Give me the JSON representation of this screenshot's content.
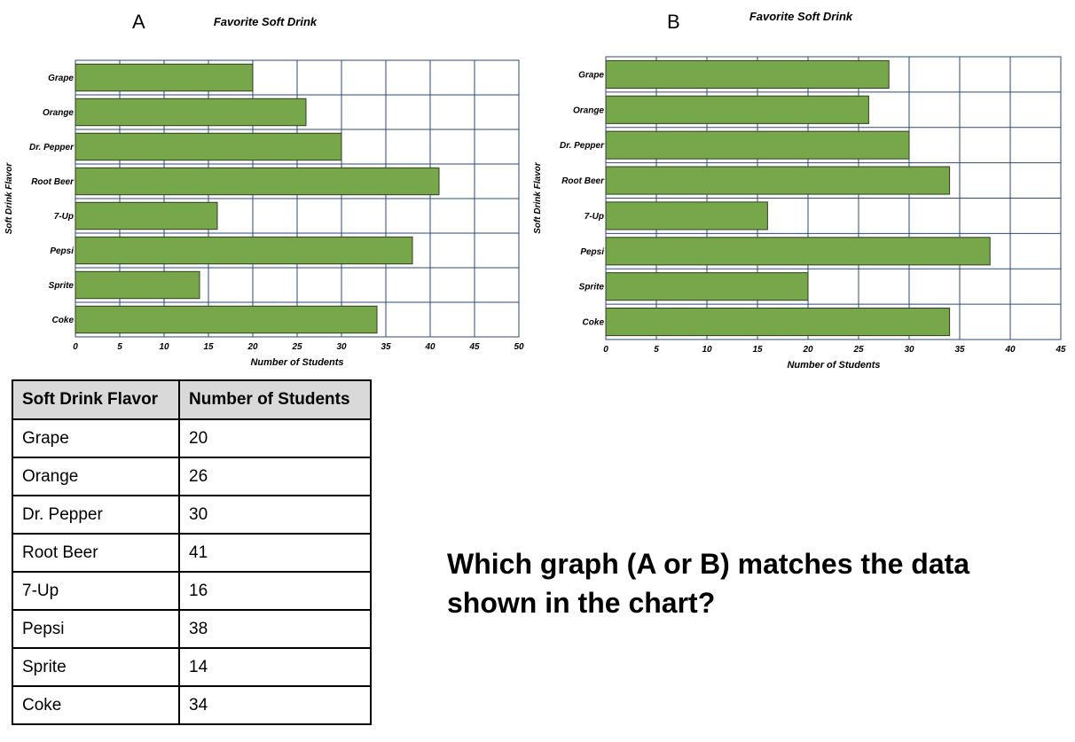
{
  "panels": {
    "a_label": "A",
    "b_label": "B"
  },
  "chart_data": [
    {
      "type": "bar",
      "orientation": "horizontal",
      "title": "Favorite Soft Drink",
      "xlabel": "Number of Students",
      "ylabel": "Soft Drink Flavor",
      "categories": [
        "Grape",
        "Orange",
        "Dr. Pepper",
        "Root Beer",
        "7-Up",
        "Pepsi",
        "Sprite",
        "Coke"
      ],
      "values": [
        20,
        26,
        30,
        41,
        16,
        38,
        14,
        34
      ],
      "xlim": [
        0,
        50
      ],
      "xticks": [
        "0",
        "5",
        "10",
        "15",
        "20",
        "25",
        "30",
        "35",
        "40",
        "45",
        "50"
      ],
      "grid": true,
      "bar_color": "#77a64b",
      "grid_color": "#2c4a74"
    },
    {
      "type": "bar",
      "orientation": "horizontal",
      "title": "Favorite Soft Drink",
      "xlabel": "Number of Students",
      "ylabel": "Soft Drink Flavor",
      "categories": [
        "Grape",
        "Orange",
        "Dr. Pepper",
        "Root Beer",
        "7-Up",
        "Pepsi",
        "Sprite",
        "Coke"
      ],
      "values": [
        28,
        26,
        30,
        34,
        16,
        38,
        20,
        34
      ],
      "xlim": [
        0,
        45
      ],
      "xticks": [
        "0",
        "5",
        "10",
        "15",
        "20",
        "25",
        "30",
        "35",
        "40",
        "45"
      ],
      "grid": true,
      "bar_color": "#77a64b",
      "grid_color": "#2c4a74"
    }
  ],
  "table": {
    "headers": [
      "Soft Drink Flavor",
      "Number of Students"
    ],
    "rows": [
      [
        "Grape",
        "20"
      ],
      [
        "Orange",
        "26"
      ],
      [
        "Dr. Pepper",
        "30"
      ],
      [
        "Root Beer",
        "41"
      ],
      [
        "7-Up",
        "16"
      ],
      [
        "Pepsi",
        "38"
      ],
      [
        "Sprite",
        "14"
      ],
      [
        "Coke",
        "34"
      ]
    ]
  },
  "question": "Which graph (A or B) matches the data shown in the chart?"
}
